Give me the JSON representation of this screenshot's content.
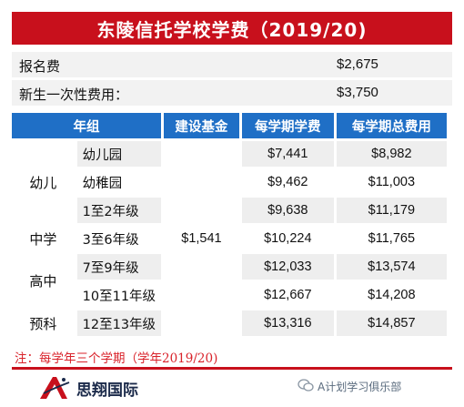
{
  "title": "东陵信托学校学费（2019/20)",
  "fees": [
    {
      "label": "报名费",
      "value": "$2,675"
    },
    {
      "label": "新生一次性费用：",
      "value": "$3,750"
    }
  ],
  "table": {
    "headers": [
      "年组",
      "建设基金",
      "每学期学费",
      "每学期总费用"
    ],
    "groups": [
      "幼儿",
      "中学",
      "高中",
      "预科"
    ],
    "building_fund": "$1,541",
    "rows": [
      {
        "grade": "幼儿园",
        "tuition": "$7,441",
        "total": "$8,982"
      },
      {
        "grade": "幼稚园",
        "tuition": "$9,462",
        "total": "$11,003"
      },
      {
        "grade": "1至2年级",
        "tuition": "$9,638",
        "total": "$11,179"
      },
      {
        "grade": "3至6年级",
        "tuition": "$10,224",
        "total": "$11,765"
      },
      {
        "grade": "7至9年级",
        "tuition": "$12,033",
        "total": "$13,574"
      },
      {
        "grade": "10至11年级",
        "tuition": "$12,667",
        "total": "$14,208"
      },
      {
        "grade": "12至13年级",
        "tuition": "$13,316",
        "total": "$14,857"
      }
    ]
  },
  "note": "注：每学年三个学期（学年2019/20)",
  "brand": "思翔国际",
  "watermark": "A计划学习俱乐部",
  "colors": {
    "title_red": "#c8101c",
    "header_blue": "#1f6fc6",
    "note_red": "#d9222a",
    "row_gray": "#eeeeee"
  }
}
